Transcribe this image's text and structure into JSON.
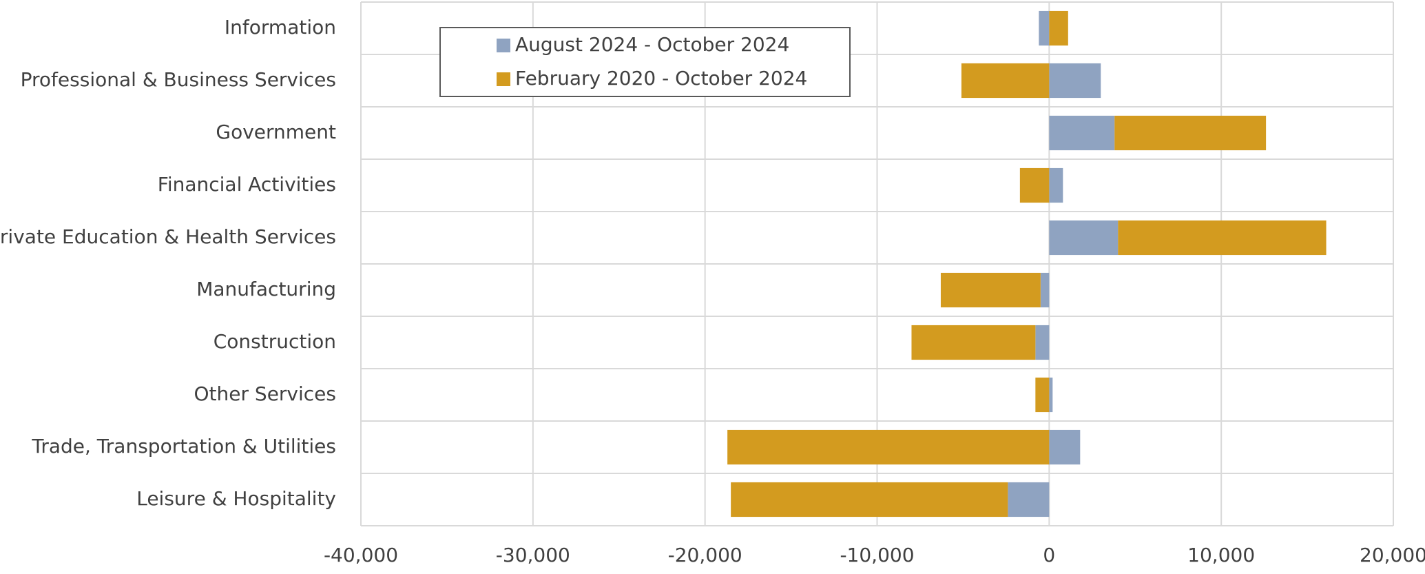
{
  "chart_data": {
    "type": "stacked-barh",
    "categories": [
      "Information",
      "Professional & Business Services",
      "Government",
      "Financial Activities",
      "Private Education & Health Services",
      "Manufacturing",
      "Construction",
      "Other Services",
      "Trade, Transportation & Utilities",
      "Leisure & Hospitality"
    ],
    "series": [
      {
        "name": "August 2024 - October 2024",
        "color": "#8fa3c1",
        "values": [
          -600,
          3000,
          3800,
          800,
          4000,
          -500,
          -800,
          200,
          1800,
          -2400
        ]
      },
      {
        "name": "February 2020 - October 2024",
        "color": "#d39b1f",
        "values": [
          1100,
          -5100,
          8800,
          -1700,
          12100,
          -5800,
          -7200,
          -800,
          -18700,
          -16100
        ]
      }
    ],
    "xlim": [
      -40000,
      20000
    ],
    "xticks": [
      {
        "value": -40000,
        "label": "-40,000"
      },
      {
        "value": -30000,
        "label": "-30,000"
      },
      {
        "value": -20000,
        "label": "-20,000"
      },
      {
        "value": -10000,
        "label": "-10,000"
      },
      0,
      {
        "value": 10000,
        "label": "10,000"
      },
      {
        "value": 20000,
        "label": "20,000"
      }
    ],
    "grid": true,
    "legend": "upper left"
  }
}
